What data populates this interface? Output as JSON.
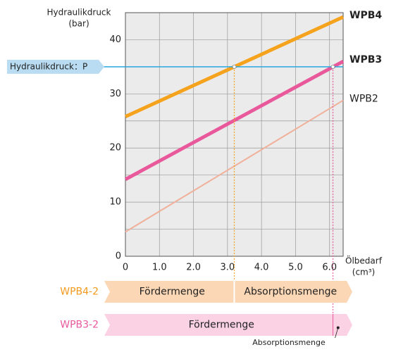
{
  "chart_data": {
    "type": "line",
    "y_label": [
      "Hydraulikdruck",
      "(bar)"
    ],
    "x_label": [
      "Ölbedarf",
      "(cm³)"
    ],
    "xlim": [
      0,
      6.4
    ],
    "ylim": [
      0,
      45
    ],
    "xticks": [
      0,
      {
        "value": 1,
        "label": "1.0"
      },
      {
        "value": 2,
        "label": "2.0"
      },
      {
        "value": 3,
        "label": "3.0"
      },
      {
        "value": 4,
        "label": "4.0"
      },
      {
        "value": 5,
        "label": "5.0"
      },
      {
        "value": 6,
        "label": "6.0"
      }
    ],
    "yticks": [
      0,
      10,
      20,
      30,
      40
    ],
    "yminor": [
      5,
      15,
      25,
      35
    ],
    "grid": true,
    "x": [
      0,
      6.4
    ],
    "series": [
      {
        "name": "WPB4",
        "color": "#f5a21d",
        "width": 5,
        "bold": true,
        "values": [
          25.8,
          44.2
        ]
      },
      {
        "name": "WPB3",
        "color": "#e8589b",
        "width": 5,
        "bold": true,
        "values": [
          14.2,
          36
        ]
      },
      {
        "name": "WPB2",
        "color": "#f0b09a",
        "width": 2,
        "bold": false,
        "values": [
          4.5,
          28.8
        ]
      }
    ],
    "pressure": {
      "label": "Hydraulikdruck：P",
      "value": 35,
      "color": "#29a8e0"
    },
    "intersections": [
      {
        "x": 3.2,
        "color": "#f5a21d"
      },
      {
        "x": 6.1,
        "color": "#e8589b"
      }
    ],
    "bands": [
      {
        "name": "WPB4-2",
        "color": "#f39a1e",
        "fill": "#fbd7b5",
        "segments": [
          {
            "label": "Fördermenge",
            "from": 0,
            "to": 3.2
          },
          {
            "label": "Absorptionsmenge",
            "from": 3.2,
            "to": 6.4
          }
        ]
      },
      {
        "name": "WPB3-2",
        "color": "#e8589b",
        "fill": "#fad2e4",
        "segments": [
          {
            "label": "Fördermenge",
            "from": 0,
            "to": 6.1
          },
          {
            "label": "Absorptionsmenge",
            "from": 6.1,
            "to": 6.4
          }
        ]
      }
    ]
  }
}
